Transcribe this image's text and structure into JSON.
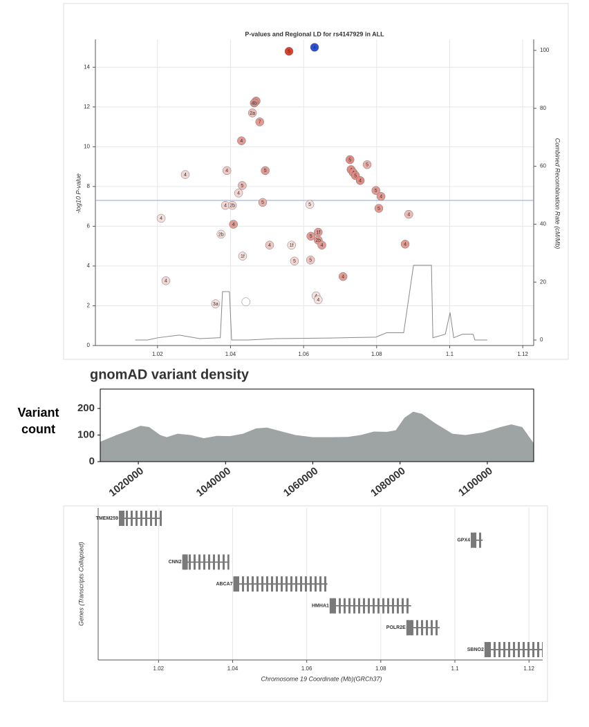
{
  "chart_data": [
    {
      "type": "scatter",
      "title": "P-values and Regional LD for rs4147929 in ALL",
      "ylabel": "-log10 P-value",
      "y2label": "Combined Recombination Rate (cM/Mb)",
      "xlim": [
        1.003,
        1.123
      ],
      "xticks": [
        1.02,
        1.04,
        1.06,
        1.08,
        1.1,
        1.12
      ],
      "ylim": [
        0,
        15.4
      ],
      "yticks": [
        0,
        2,
        4,
        6,
        8,
        10,
        12,
        14
      ],
      "y2lim": [
        -1.9,
        103.8
      ],
      "y2ticks": [
        0,
        20,
        40,
        60,
        80,
        100
      ],
      "grid": true,
      "hline": 7.3,
      "hline_color": "#8fa3d6",
      "series": [
        {
          "x": [
            1.056,
            1.063,
            1.047,
            1.0465,
            1.046,
            1.048,
            1.043,
            1.0276,
            1.039,
            1.0495,
            1.0432,
            1.0422,
            1.0488,
            1.0386,
            1.0405,
            1.0617,
            1.021,
            1.0408,
            1.0374,
            1.0507,
            1.0567,
            1.0433,
            1.0575,
            1.0619,
            1.062,
            1.064,
            1.064,
            1.065,
            1.0727,
            1.0774,
            1.073,
            1.0736,
            1.0742,
            1.0755,
            1.0798,
            1.0812,
            1.0806,
            1.0888,
            1.0878,
            1.0708,
            1.0223,
            1.0634,
            1.064,
            1.0359,
            1.0442
          ],
          "values": [
            14.8,
            15.0,
            12.3,
            12.2,
            11.7,
            11.25,
            10.3,
            8.6,
            8.8,
            8.8,
            8.05,
            7.67,
            7.2,
            7.05,
            7.05,
            7.1,
            6.4,
            6.1,
            5.6,
            5.05,
            5.05,
            4.5,
            4.25,
            4.3,
            5.5,
            5.7,
            5.3,
            5.05,
            9.35,
            9.1,
            8.85,
            8.7,
            8.55,
            8.3,
            7.8,
            7.5,
            6.9,
            6.6,
            5.1,
            3.47,
            3.26,
            2.5,
            2.3,
            2.1,
            2.2
          ],
          "point_labels": [
            "5",
            "4",
            "4",
            "4b",
            "2a",
            "7",
            "4",
            "4",
            "4",
            "5",
            "5",
            "4",
            "5",
            "4",
            "2b",
            "5",
            "4",
            "4",
            "2b",
            "4",
            "1f",
            "1f",
            "5",
            "5",
            "5",
            "1f",
            "2b",
            "4",
            "5",
            "5",
            "4",
            "4",
            "5",
            "4",
            "5",
            "4",
            "5",
            "4",
            "4",
            "4",
            "4",
            "4",
            "4",
            "3a",
            null
          ],
          "colors": [
            "#d8442f",
            "#2b4fd0",
            "#d99088",
            "#d99088",
            "#e9bcb6",
            "#e29a92",
            "#e29a92",
            "#f3d6d3",
            "#efc7c2",
            "#e29a92",
            "#ecbab4",
            "#f3d6d3",
            "#e9b0aa",
            "#f3d6d3",
            "#f3d6d3",
            "#f6e0de",
            "#f6e0de",
            "#e29a92",
            "#f6e0de",
            "#efc7c2",
            "#f6e0de",
            "#f6e0de",
            "#f3d6d3",
            "#efc7c2",
            "#e29a92",
            "#e29a92",
            "#e29a92",
            "#e29a92",
            "#e08c84",
            "#e9b0aa",
            "#e08c84",
            "#e08c84",
            "#e08c84",
            "#e08c84",
            "#e29a92",
            "#e29a92",
            "#e29a92",
            "#ecbab4",
            "#e29a92",
            "#e29a92",
            "#f3d6d3",
            "#f6e0de",
            "#f6e0de",
            "#f6e0de",
            "#ffffff"
          ]
        },
        {
          "type": "line",
          "axis": "y2",
          "color": "#888888",
          "x": [
            1.0139,
            1.0173,
            1.0202,
            1.0259,
            1.0316,
            1.0372,
            1.0378,
            1.0397,
            1.0403,
            1.0448,
            1.0524,
            1.0675,
            1.0798,
            1.0827,
            1.0874,
            1.0901,
            1.095,
            1.0954,
            1.0988,
            1.1001,
            1.1011,
            1.1035,
            1.1064,
            1.1069,
            1.1103
          ],
          "values": [
            0,
            0,
            0.8,
            1.7,
            0.5,
            0.8,
            16.7,
            16.7,
            0,
            0,
            0.5,
            0.7,
            1,
            2.5,
            2.5,
            25.8,
            25.8,
            0.8,
            2,
            9.5,
            0.8,
            2,
            2,
            0,
            0
          ]
        }
      ]
    },
    {
      "type": "area",
      "title": "gnomAD variant density",
      "ylabel": "Variant count",
      "color": "#9ea3a3",
      "xlim": [
        1011270,
        1110630
      ],
      "xticks": [
        1020000,
        1040000,
        1060000,
        1080000,
        1100000
      ],
      "ylim": [
        0,
        273
      ],
      "yticks": [
        0,
        100,
        200
      ],
      "x": [
        1011300,
        1015000,
        1018000,
        1020500,
        1022500,
        1025000,
        1026500,
        1029000,
        1032000,
        1035000,
        1038000,
        1041000,
        1044000,
        1047000,
        1049500,
        1052500,
        1056000,
        1060000,
        1064000,
        1068000,
        1071000,
        1074000,
        1077000,
        1079000,
        1081000,
        1083000,
        1085000,
        1088000,
        1092000,
        1095000,
        1099000,
        1103000,
        1105500,
        1108000,
        1110600
      ],
      "values": [
        75,
        100,
        118,
        135,
        130,
        100,
        92,
        105,
        100,
        88,
        97,
        96,
        105,
        125,
        128,
        115,
        100,
        92,
        92,
        93,
        100,
        113,
        112,
        118,
        165,
        188,
        180,
        145,
        105,
        100,
        110,
        130,
        140,
        130,
        70
      ]
    },
    {
      "type": "gene-track",
      "xlabel": "Chromosome 19 Coordinate (Mb)(GRCh37)",
      "ylabel": "Genes (Transcripts Collapsed)",
      "xlim": [
        1.0037,
        1.1237
      ],
      "xticks": [
        1.02,
        1.04,
        1.06,
        1.08,
        1.1,
        1.12
      ],
      "grid": true,
      "color": "#7a7a7a",
      "genes": [
        {
          "name": "TMEM259",
          "start": 1.0093,
          "end": 1.0209
        },
        {
          "name": "GPX4",
          "start": 1.1043,
          "end": 1.1075
        },
        {
          "name": "CNN2",
          "start": 1.0264,
          "end": 1.0391
        },
        {
          "name": "ABCA7",
          "start": 1.0402,
          "end": 1.0656
        },
        {
          "name": "HMHA1",
          "start": 1.0662,
          "end": 1.0882
        },
        {
          "name": "POLR2E",
          "start": 1.0869,
          "end": 1.0959
        },
        {
          "name": "SBNO2",
          "start": 1.108,
          "end": 1.1237
        }
      ]
    }
  ]
}
